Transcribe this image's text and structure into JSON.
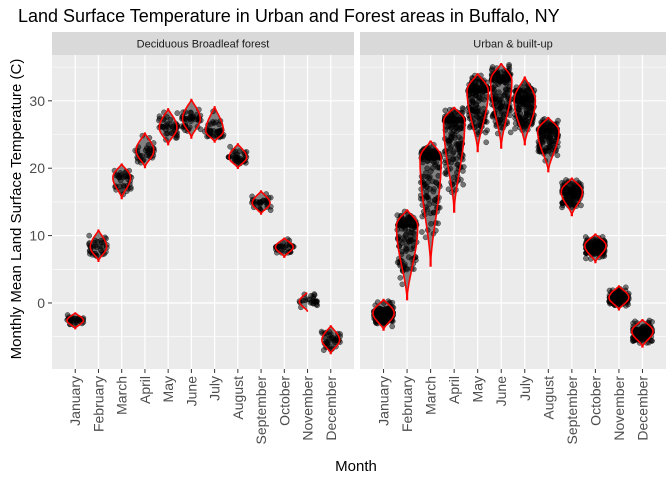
{
  "chart_data": {
    "type": "violin",
    "title": "Land Surface Temperature in Urban and Forest areas in Buffalo, NY",
    "xlabel": "Month",
    "ylabel": "Monthly Mean Land Surface Temperature (C)",
    "ylim": [
      -9.8,
      36.8
    ],
    "y_ticks": [
      0,
      10,
      20,
      30
    ],
    "grid": true,
    "categories": [
      "January",
      "February",
      "March",
      "April",
      "May",
      "June",
      "July",
      "August",
      "September",
      "October",
      "November",
      "December"
    ],
    "colors": {
      "panel_bg": "#ebebeb",
      "strip_bg": "#d9d9d9",
      "grid": "#ffffff",
      "violin_fill": "#808080",
      "violin_outline": "#ff0000",
      "points": "#000000"
    },
    "facets": [
      {
        "name": "Deciduous Broadleaf forest",
        "months": [
          {
            "month": "January",
            "min": -3.8,
            "max": -1.5,
            "mode": -2.6,
            "width": 0.35,
            "n": 30
          },
          {
            "month": "February",
            "min": 6.2,
            "max": 10.8,
            "mode": 8.3,
            "width": 0.35,
            "n": 35
          },
          {
            "month": "March",
            "min": 15.5,
            "max": 20.6,
            "mode": 18.6,
            "width": 0.38,
            "n": 35
          },
          {
            "month": "April",
            "min": 20.1,
            "max": 25.2,
            "mode": 22.6,
            "width": 0.38,
            "n": 35
          },
          {
            "month": "May",
            "min": 23.5,
            "max": 28.8,
            "mode": 26.0,
            "width": 0.38,
            "n": 40
          },
          {
            "month": "June",
            "min": 24.5,
            "max": 30.2,
            "mode": 27.3,
            "width": 0.38,
            "n": 40
          },
          {
            "month": "July",
            "min": 23.9,
            "max": 29.1,
            "mode": 25.5,
            "width": 0.38,
            "n": 40
          },
          {
            "month": "August",
            "min": 20.0,
            "max": 23.6,
            "mode": 21.6,
            "width": 0.38,
            "n": 35
          },
          {
            "month": "September",
            "min": 13.2,
            "max": 16.6,
            "mode": 14.8,
            "width": 0.38,
            "n": 30
          },
          {
            "month": "October",
            "min": 6.8,
            "max": 9.6,
            "mode": 8.3,
            "width": 0.38,
            "n": 30
          },
          {
            "month": "November",
            "min": -1.3,
            "max": 1.6,
            "mode": 0.2,
            "width": 0.35,
            "n": 25
          },
          {
            "month": "December",
            "min": -7.5,
            "max": -3.4,
            "mode": -5.5,
            "width": 0.38,
            "n": 35
          }
        ]
      },
      {
        "name": "Urban & built-up",
        "months": [
          {
            "month": "January",
            "min": -4.0,
            "max": 0.5,
            "mode": -1.5,
            "width": 0.45,
            "n": 140
          },
          {
            "month": "February",
            "min": 0.5,
            "max": 13.8,
            "mode": 11.5,
            "width": 0.45,
            "n": 150
          },
          {
            "month": "March",
            "min": 5.5,
            "max": 24.0,
            "mode": 21.5,
            "width": 0.45,
            "n": 160
          },
          {
            "month": "April",
            "min": 13.5,
            "max": 29.0,
            "mode": 27.0,
            "width": 0.45,
            "n": 170
          },
          {
            "month": "May",
            "min": 22.5,
            "max": 34.0,
            "mode": 31.5,
            "width": 0.45,
            "n": 170
          },
          {
            "month": "June",
            "min": 23.0,
            "max": 35.5,
            "mode": 33.0,
            "width": 0.45,
            "n": 170
          },
          {
            "month": "July",
            "min": 23.5,
            "max": 33.5,
            "mode": 30.0,
            "width": 0.45,
            "n": 160
          },
          {
            "month": "August",
            "min": 19.5,
            "max": 27.5,
            "mode": 25.5,
            "width": 0.45,
            "n": 150
          },
          {
            "month": "September",
            "min": 13.0,
            "max": 18.5,
            "mode": 16.5,
            "width": 0.45,
            "n": 140
          },
          {
            "month": "October",
            "min": 6.0,
            "max": 10.2,
            "mode": 8.5,
            "width": 0.45,
            "n": 130
          },
          {
            "month": "November",
            "min": -1.0,
            "max": 2.5,
            "mode": 0.8,
            "width": 0.42,
            "n": 110
          },
          {
            "month": "December",
            "min": -6.5,
            "max": -2.5,
            "mode": -4.2,
            "width": 0.45,
            "n": 140
          }
        ]
      }
    ]
  }
}
